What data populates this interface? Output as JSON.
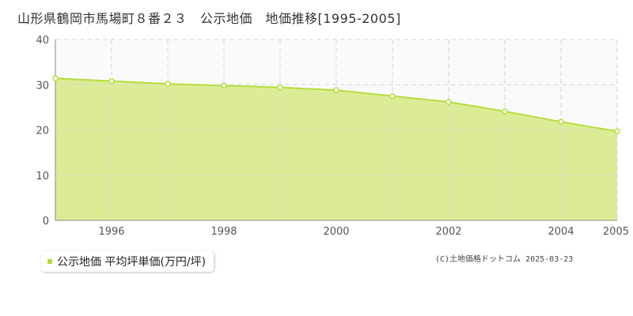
{
  "title": "山形県鶴岡市馬場町８番２３　公示地価　地価推移[1995-2005]",
  "legend": {
    "label": "公示地価 平均坪単価(万円/坪)"
  },
  "credit": "(C)土地価格ドットコム 2025-03-23",
  "colors": {
    "fill": "#dcec96",
    "line": "#b5dd3c",
    "upper_band": "#fafafa",
    "grid": "#d6d6d6",
    "axis": "#888888"
  },
  "chart_data": {
    "type": "area",
    "x": [
      1995,
      1996,
      1997,
      1998,
      1999,
      2000,
      2001,
      2002,
      2003,
      2004,
      2005
    ],
    "series": [
      {
        "name": "公示地価 平均坪単価(万円/坪)",
        "values": [
          31.4,
          30.8,
          30.2,
          29.8,
          29.4,
          28.8,
          27.5,
          26.2,
          24.1,
          21.8,
          19.7
        ]
      }
    ],
    "xlim": [
      1995,
      2005
    ],
    "ylim": [
      0,
      40
    ],
    "yticks": [
      "0",
      "10",
      "20",
      "30",
      "40"
    ],
    "xticks": [
      "1996",
      "1998",
      "2000",
      "2002",
      "2004",
      "2005"
    ],
    "grid": true
  }
}
